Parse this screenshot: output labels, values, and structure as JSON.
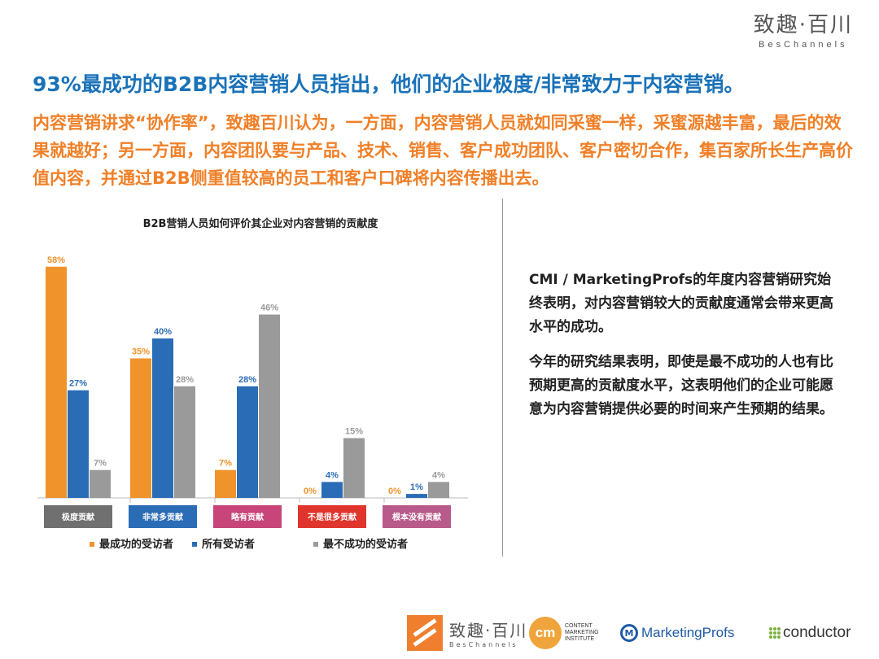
{
  "brand": {
    "name_zh": "致趣·百川",
    "name_en": "BesChannels"
  },
  "headline": "93%最成功的B2B内容营销人员指出，他们的企业极度/非常致力于内容营销。",
  "intro": "内容营销讲求“协作率”，致趣百川认为，一方面，内容营销人员就如同采蜜一样，采蜜源越丰富，最后的效果就越好；另一方面，内容团队要与产品、技术、销售、客户成功团队、客户密切合作，集百家所长生产高价值内容，并通过B2B侧重值较高的员工和客户口碑将内容传播出去。",
  "side_text": {
    "p1": "CMI / MarketingProfs的年度内容营销研究始终表明，对内容营销较大的贡献度通常会带来更高水平的成功。",
    "p2": "今年的研究结果表明，即使是最不成功的人也有比预期更高的贡献度水平，这表明他们的企业可能愿意为内容营销提供必要的时间来产生预期的结果。"
  },
  "chart_data": {
    "type": "bar",
    "title": "B2B营销人员如何评价其企业对内容营销的贡献度",
    "categories": [
      "极度贡献",
      "非常多贡献",
      "略有贡献",
      "不是很多贡献",
      "根本没有贡献"
    ],
    "category_colors": [
      "#707070",
      "#2b6cb6",
      "#c8457a",
      "#e0352d",
      "#b85a8a"
    ],
    "series": [
      {
        "name": "最成功的受访者",
        "color": "#f0932b",
        "values": [
          58,
          35,
          7,
          0,
          0
        ]
      },
      {
        "name": "所有受访者",
        "color": "#2b6cb6",
        "values": [
          27,
          40,
          28,
          4,
          1
        ]
      },
      {
        "name": "最不成功的受访者",
        "color": "#9a9a9a",
        "values": [
          7,
          28,
          46,
          15,
          4
        ]
      }
    ],
    "value_suffix": "%",
    "ylim": [
      0,
      60
    ],
    "grid": false,
    "legend": "bottom"
  },
  "footer_logos": {
    "beschannels": {
      "name_zh": "致趣·百川",
      "name_en": "BesChannels"
    },
    "cmi": {
      "mark": "cm",
      "text": "CONTENT MARKETING INSTITUTE"
    },
    "marketingprofs": {
      "mark": "M",
      "text": "MarketingProfs"
    },
    "conductor": {
      "text": "conductor"
    }
  }
}
